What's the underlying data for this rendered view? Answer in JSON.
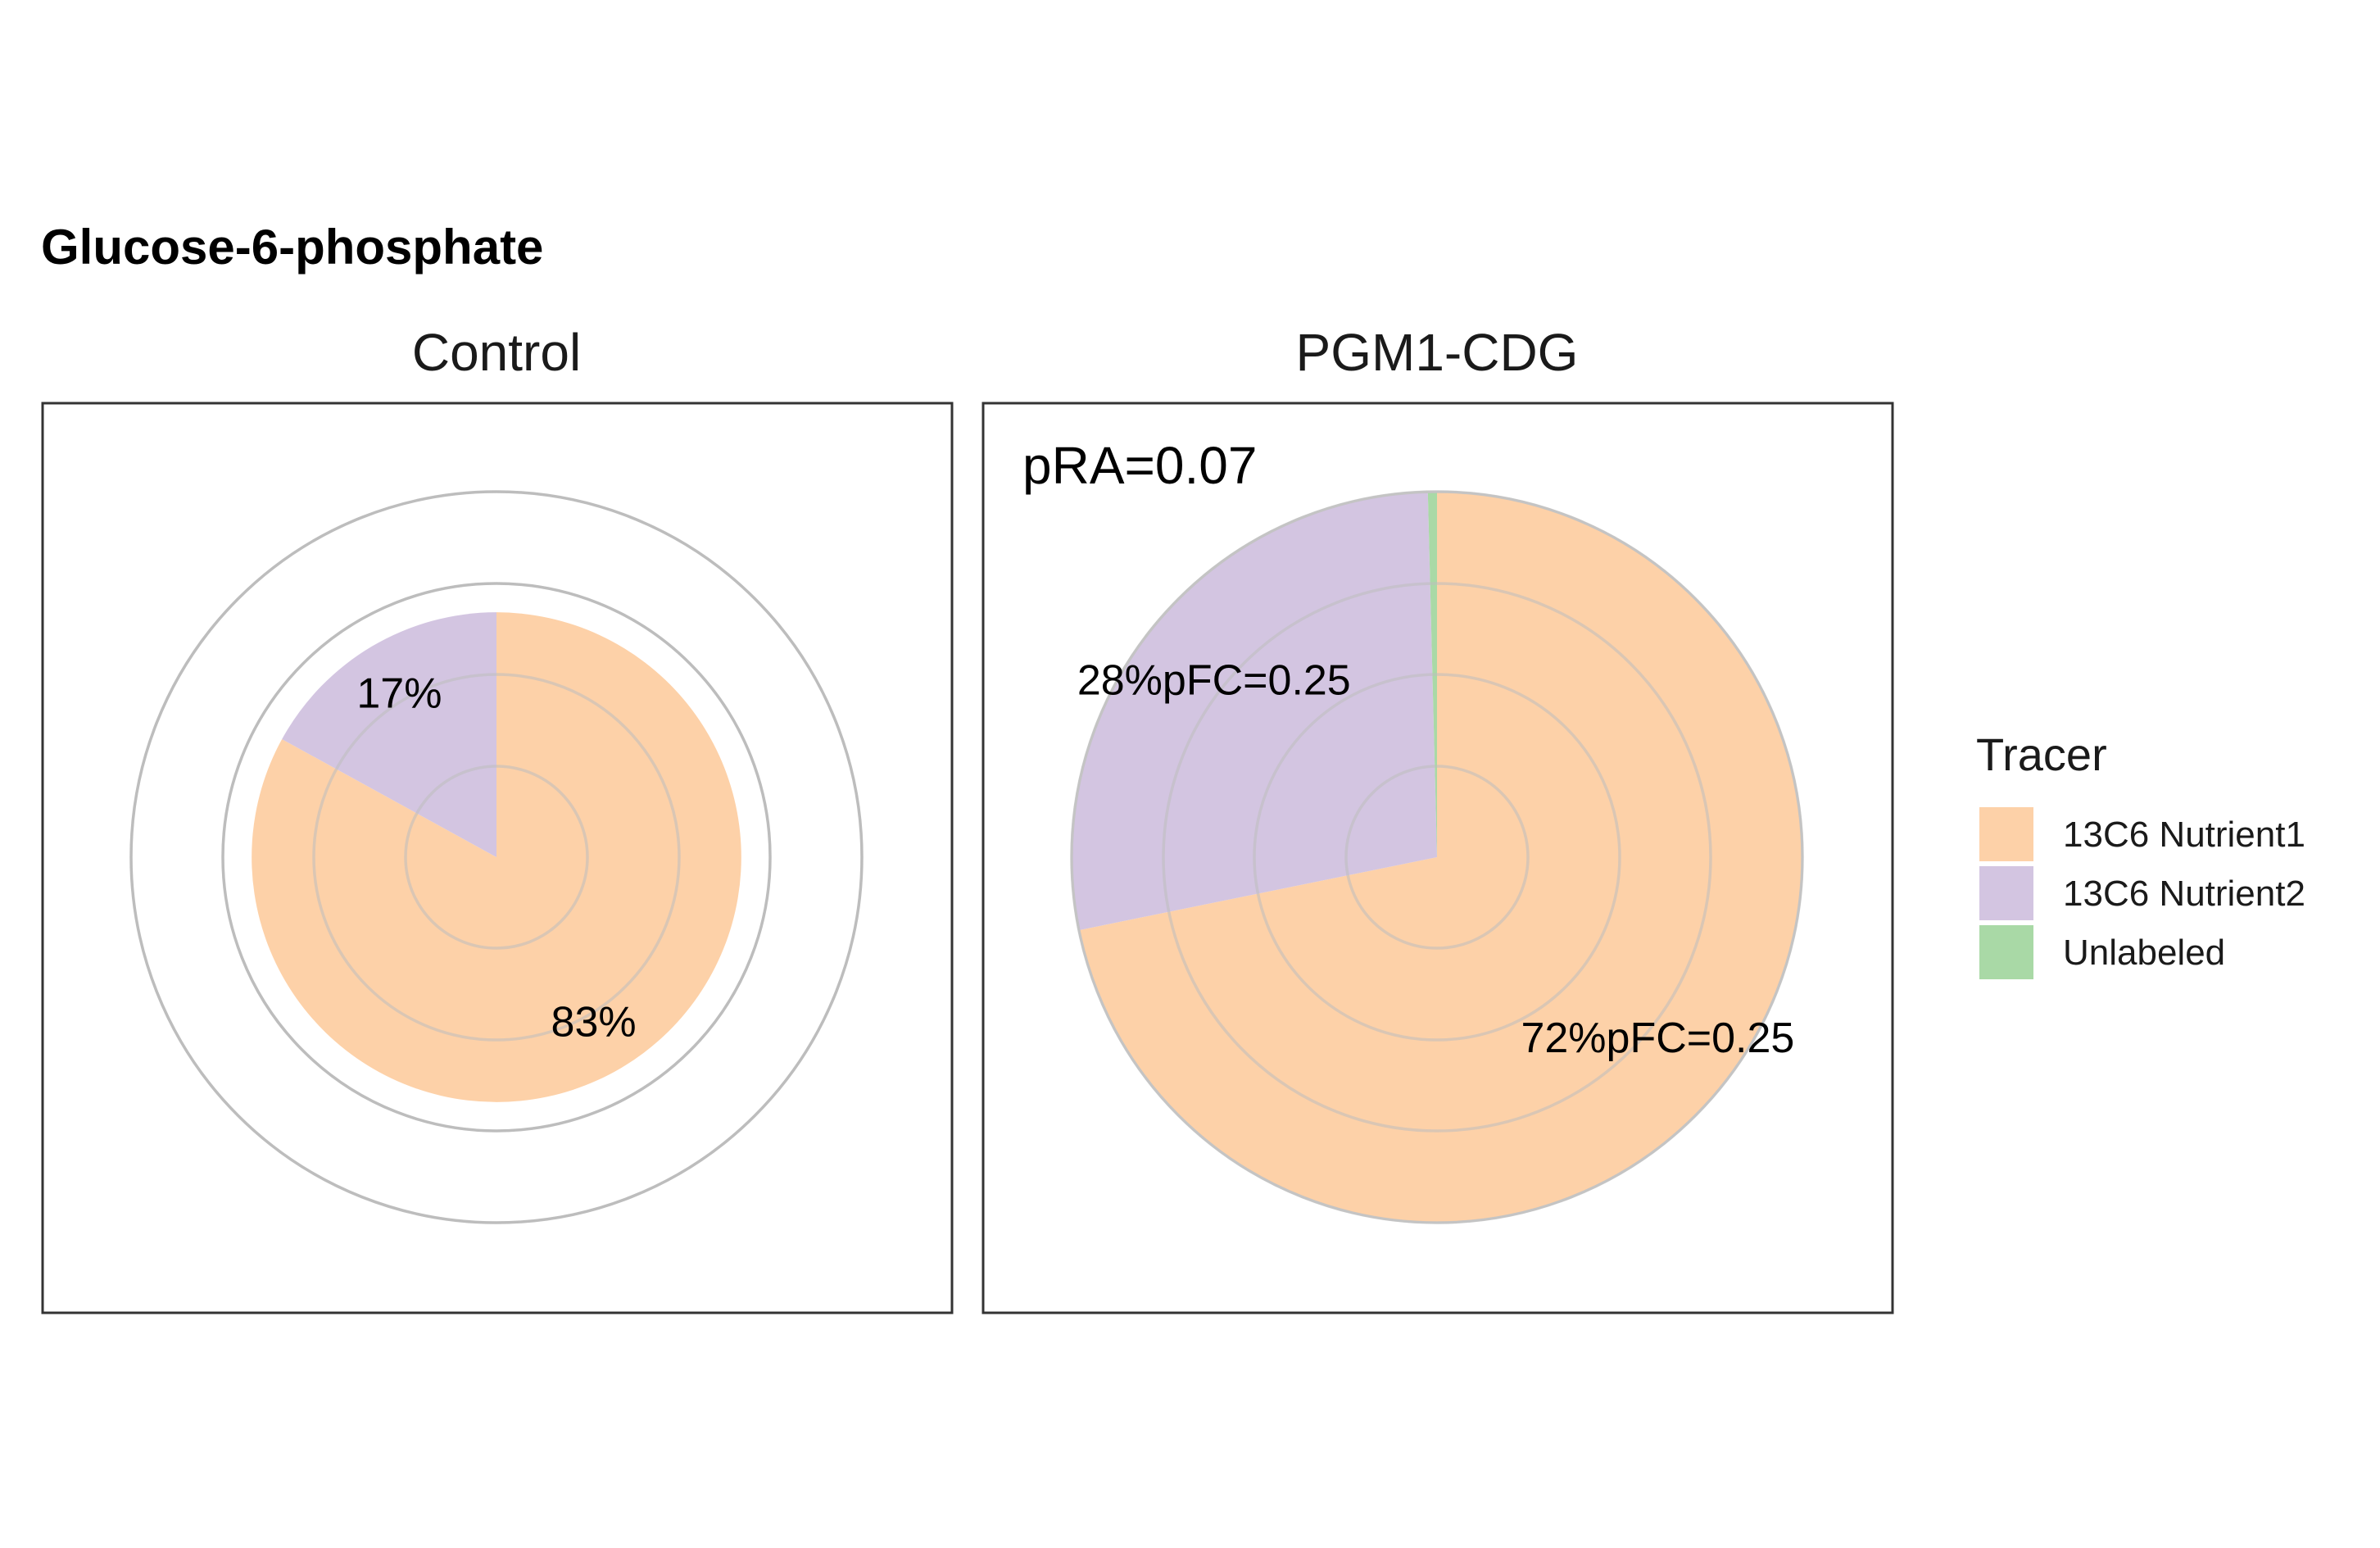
{
  "chart_data": {
    "type": "pie",
    "title": "Glucose-6-phosphate",
    "legend": {
      "title": "Tracer",
      "position": "right",
      "entries": [
        {
          "label": "13C6 Nutrient1",
          "color": "#fdd1a8"
        },
        {
          "label": "13C6 Nutrient2",
          "color": "#d3c5e1"
        },
        {
          "label": "Unlabeled",
          "color": "#a9d9a6"
        }
      ]
    },
    "panels": [
      {
        "name": "Control",
        "relative_size": 0.67,
        "slices": [
          {
            "tracer": "13C6 Nutrient1",
            "value": 0.83,
            "label": "83%"
          },
          {
            "tracer": "13C6 Nutrient2",
            "value": 0.17,
            "label": "17%"
          }
        ],
        "annotation": ""
      },
      {
        "name": "PGM1-CDG",
        "relative_size": 1.0,
        "slices": [
          {
            "tracer": "13C6 Nutrient1",
            "value": 0.718,
            "label": "72%pFC=0.25"
          },
          {
            "tracer": "13C6 Nutrient2",
            "value": 0.278,
            "label": "28%pFC=0.25"
          },
          {
            "tracer": "Unlabeled",
            "value": 0.004,
            "label": ""
          }
        ],
        "annotation": "pRA=0.07"
      }
    ],
    "grid": true
  }
}
